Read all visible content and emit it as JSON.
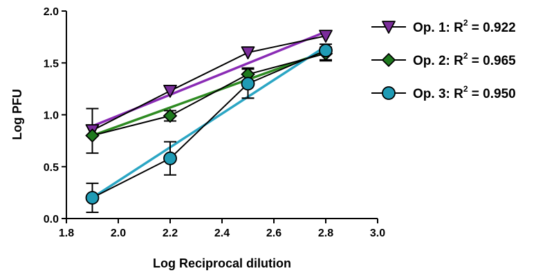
{
  "chart_data": {
    "type": "scatter",
    "xlabel": "Log Reciprocal dilution",
    "ylabel": "Log PFU",
    "xlim": [
      1.8,
      3.0
    ],
    "ylim": [
      0.0,
      2.0
    ],
    "xticks": [
      1.8,
      2.0,
      2.2,
      2.4,
      2.6,
      2.8,
      3.0
    ],
    "yticks": [
      0.0,
      0.5,
      1.0,
      1.5,
      2.0
    ],
    "xtick_labels": [
      "1.8",
      "2.0",
      "2.2",
      "2.4",
      "2.6",
      "2.8",
      "3.0"
    ],
    "ytick_labels": [
      "0.0",
      "0.5",
      "1.0",
      "1.5",
      "2.0"
    ],
    "grid": false,
    "legend_position": "right",
    "series": [
      {
        "name": "Op. 1",
        "legend_prefix": "Op. 1: R",
        "legend_sup": "2",
        "legend_suffix": " = 0.922",
        "marker": "triangle-down",
        "color": "#7B2D9B",
        "fit_color": "#8A2BB5",
        "x": [
          1.9,
          2.2,
          2.5,
          2.8
        ],
        "y": [
          0.85,
          1.23,
          1.6,
          1.76
        ],
        "err": [
          0.0,
          0.0,
          0.0,
          0.0
        ],
        "fit": [
          [
            1.9,
            0.89
          ],
          [
            2.8,
            1.8
          ]
        ]
      },
      {
        "name": "Op. 2",
        "legend_prefix": "Op. 2: R",
        "legend_sup": "2",
        "legend_suffix": " = 0.965",
        "marker": "diamond",
        "color": "#1E7A1E",
        "fit_color": "#2E8B22",
        "x": [
          1.9,
          2.2,
          2.5,
          2.8
        ],
        "y": [
          0.8,
          0.99,
          1.39,
          1.59
        ],
        "err": [
          0.0,
          0.05,
          0.06,
          0.06
        ],
        "fit": [
          [
            1.9,
            0.8
          ],
          [
            2.8,
            1.61
          ]
        ]
      },
      {
        "name": "Op. 3",
        "legend_prefix": "Op. 3: R",
        "legend_sup": "2",
        "legend_suffix": " = 0.950",
        "marker": "circle",
        "color": "#1F9BB5",
        "fit_color": "#2BA6C4",
        "x": [
          1.9,
          2.2,
          2.5,
          2.8
        ],
        "y": [
          0.2,
          0.58,
          1.3,
          1.62
        ],
        "err": [
          0.14,
          0.16,
          0.14,
          0.0
        ],
        "fit": [
          [
            1.9,
            0.2
          ],
          [
            2.8,
            1.66
          ]
        ]
      }
    ],
    "op1_errorbars": {
      "x": [
        1.9,
        2.5,
        2.8
      ],
      "hi": [
        1.06,
        1.45,
        1.68
      ],
      "lo": [
        0.63,
        1.16,
        1.52
      ]
    }
  }
}
